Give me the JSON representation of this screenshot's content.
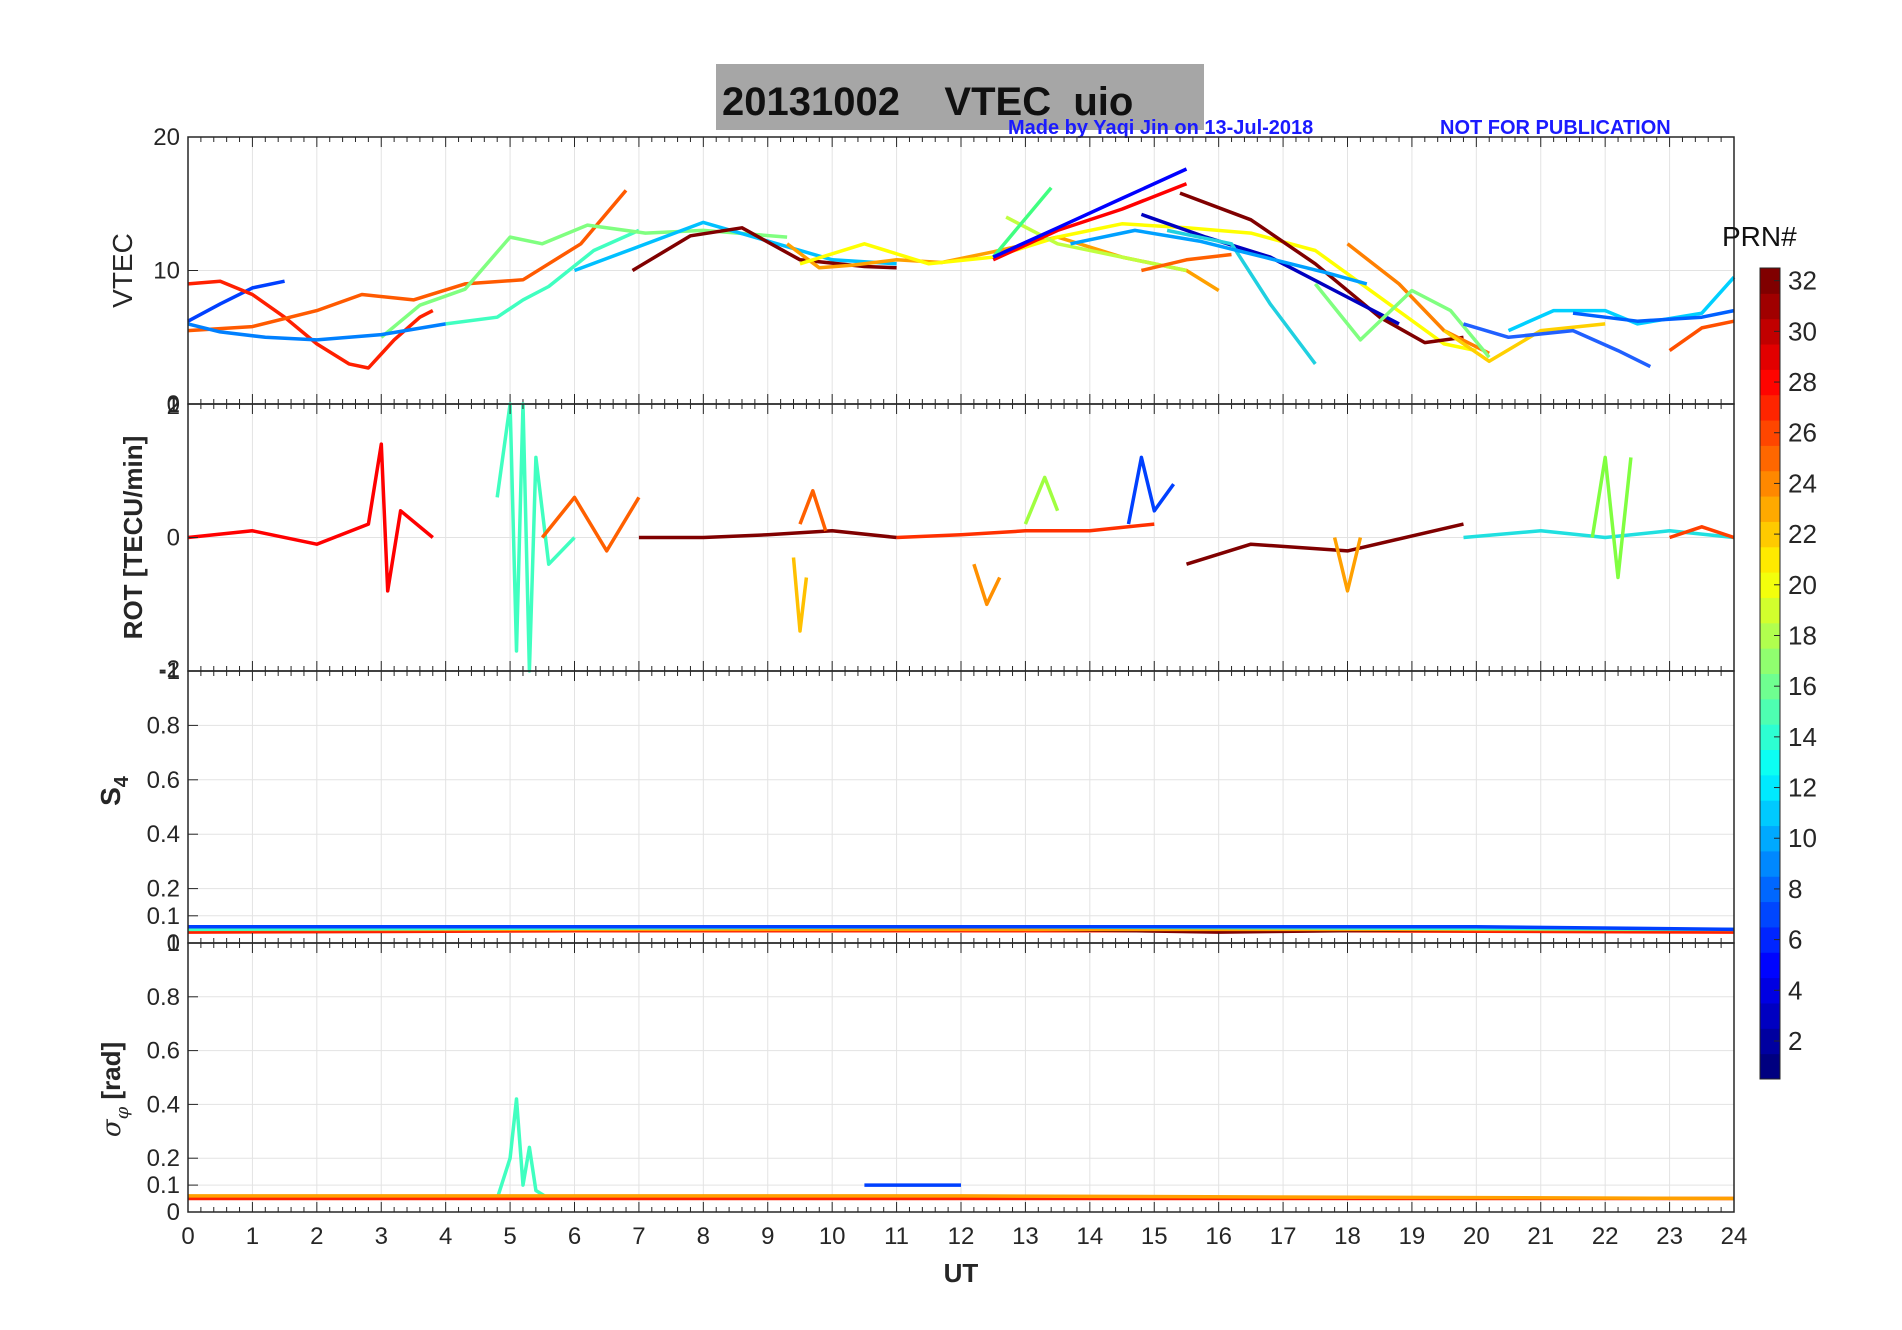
{
  "figure": {
    "title": "20131002    VTEC  uio",
    "credit": "Made by Yaqi Jin on 13-Jul-2018",
    "notice": "NOT FOR PUBLICATION",
    "colors": {
      "title_box": "#a6a6a6",
      "credit_text": "#1a1aff",
      "grid": "#e3e3e3",
      "axes": "#262626"
    }
  },
  "chart_data": [
    {
      "type": "line",
      "panel": "vtec",
      "ylabel": "VTEC",
      "ylim": [
        0,
        20
      ],
      "yticks": [
        "0",
        "10",
        "20"
      ],
      "yticks_values": [
        0,
        10,
        20
      ],
      "xlim": [
        0,
        24
      ],
      "grid": true,
      "series": [
        {
          "color": "#0040ff",
          "x": [
            0,
            0.5,
            1,
            1.5
          ],
          "y": [
            6.2,
            7.5,
            8.7,
            9.2
          ]
        },
        {
          "color": "#ff2000",
          "x": [
            0,
            0.5,
            1,
            1.5,
            2,
            2.5,
            2.8,
            3.2,
            3.6,
            3.8
          ],
          "y": [
            9,
            9.2,
            8.2,
            6.5,
            4.5,
            3,
            2.7,
            4.8,
            6.5,
            7
          ]
        },
        {
          "color": "#ff5a00",
          "x": [
            0,
            1,
            2,
            2.7,
            3.5,
            4.3,
            5.2,
            6.1,
            6.8
          ],
          "y": [
            5.5,
            5.8,
            7,
            8.2,
            7.8,
            9,
            9.3,
            12,
            16
          ]
        },
        {
          "color": "#40ffc0",
          "x": [
            4,
            4.8,
            5.2,
            5.6,
            6.3,
            7
          ],
          "y": [
            6,
            6.5,
            7.8,
            8.8,
            11.5,
            13
          ]
        },
        {
          "color": "#80ff80",
          "x": [
            3,
            3.6,
            4.3,
            5,
            5.5,
            6.2,
            7.1,
            8,
            9.3
          ],
          "y": [
            5,
            7.4,
            8.6,
            12.5,
            12,
            13.4,
            12.8,
            13,
            12.5
          ]
        },
        {
          "color": "#0080ff",
          "x": [
            0,
            0.5,
            1.2,
            2,
            3,
            4
          ],
          "y": [
            6,
            5.4,
            5,
            4.8,
            5.2,
            6
          ]
        },
        {
          "color": "#00c0ff",
          "x": [
            6,
            7,
            8,
            9,
            10,
            11
          ],
          "y": [
            10,
            11.8,
            13.6,
            12.2,
            10.8,
            10.5
          ]
        },
        {
          "color": "#800000",
          "x": [
            6.9,
            7.8,
            8.6,
            9.5,
            10.5,
            11
          ],
          "y": [
            10,
            12.6,
            13.2,
            10.8,
            10.3,
            10.2
          ]
        },
        {
          "color": "#ffa000",
          "x": [
            9.3,
            9.8,
            10.3,
            11,
            11.7,
            12.5,
            13.5,
            14.5,
            15.5,
            16
          ],
          "y": [
            12,
            10.2,
            10.4,
            10.8,
            10.6,
            11.4,
            12.5,
            11,
            10,
            8.5
          ]
        },
        {
          "color": "#ffff00",
          "x": [
            9.5,
            10.5,
            11.5,
            12.5,
            13.5,
            14.5,
            15.5,
            16.5,
            17.5,
            18.5,
            19.5,
            20
          ],
          "y": [
            10.5,
            12,
            10.5,
            11,
            12.5,
            13.5,
            13.2,
            12.8,
            11.5,
            8,
            4.5,
            4
          ]
        },
        {
          "color": "#c0ff40",
          "x": [
            12.7,
            13.5,
            14.5,
            15.5
          ],
          "y": [
            14,
            12,
            11,
            10
          ]
        },
        {
          "color": "#40ff80",
          "x": [
            12.5,
            13.4
          ],
          "y": [
            11,
            16.2
          ]
        },
        {
          "color": "#ff0000",
          "x": [
            12.5,
            13.5,
            14.5,
            15.5
          ],
          "y": [
            10.8,
            13,
            14.6,
            16.5
          ]
        },
        {
          "color": "#0000ff",
          "x": [
            12.5,
            13.5,
            14.5,
            15.5
          ],
          "y": [
            11,
            13.2,
            15.4,
            17.6
          ]
        },
        {
          "color": "#ff6000",
          "x": [
            14.8,
            15.5,
            16.2
          ],
          "y": [
            10,
            10.8,
            11.2
          ]
        },
        {
          "color": "#800000",
          "x": [
            15.4,
            16.5,
            17.5,
            18.5,
            19.2,
            19.8
          ],
          "y": [
            15.8,
            13.8,
            10.5,
            6.5,
            4.6,
            5
          ]
        },
        {
          "color": "#0000c0",
          "x": [
            14.8,
            15.8,
            16.8,
            17.8,
            18.8
          ],
          "y": [
            14.2,
            12.5,
            11,
            8.5,
            6
          ]
        },
        {
          "color": "#20d0e0",
          "x": [
            15.2,
            16.2,
            16.8,
            17.5
          ],
          "y": [
            13,
            12,
            7.5,
            3
          ]
        },
        {
          "color": "#00a0ff",
          "x": [
            13.7,
            14.7,
            15.7,
            16.7,
            17.7,
            18.3
          ],
          "y": [
            12,
            13,
            12.2,
            11,
            9.8,
            9
          ]
        },
        {
          "color": "#ff8000",
          "x": [
            18,
            18.8,
            19.5,
            20.2
          ],
          "y": [
            12,
            9,
            5.5,
            3.8
          ]
        },
        {
          "color": "#80ff80",
          "x": [
            17.5,
            18.2,
            19,
            19.6,
            20.2
          ],
          "y": [
            9,
            4.8,
            8.5,
            7,
            3.5
          ]
        },
        {
          "color": "#ffd000",
          "x": [
            19.5,
            20.2,
            21,
            22
          ],
          "y": [
            5.5,
            3.2,
            5.5,
            6
          ]
        },
        {
          "color": "#2060ff",
          "x": [
            19.8,
            20.5,
            21.5,
            22.2,
            22.7
          ],
          "y": [
            6,
            5,
            5.5,
            4,
            2.8
          ]
        },
        {
          "color": "#00d0ff",
          "x": [
            20.5,
            21.2,
            22,
            22.5,
            23.5,
            24
          ],
          "y": [
            5.5,
            7,
            7,
            6,
            6.8,
            9.5
          ]
        },
        {
          "color": "#0060ff",
          "x": [
            21.5,
            22.5,
            23.5,
            24
          ],
          "y": [
            6.8,
            6.2,
            6.5,
            7
          ]
        },
        {
          "color": "#ff5000",
          "x": [
            23,
            23.5,
            24
          ],
          "y": [
            4,
            5.7,
            6.2
          ]
        }
      ]
    },
    {
      "type": "line",
      "panel": "rot",
      "ylabel": "ROT [TECU/min]",
      "ylim": [
        -1,
        1
      ],
      "yticks": [
        "-1",
        "0",
        "1"
      ],
      "yticks_values": [
        -1,
        0,
        1
      ],
      "overlap_labels": {
        "top": "2",
        "bottom": "-2"
      },
      "xlim": [
        0,
        24
      ],
      "grid": true,
      "series": [
        {
          "color": "#ff0000",
          "x": [
            0,
            1,
            2,
            2.8,
            3,
            3.1,
            3.3,
            3.8
          ],
          "y": [
            0,
            0.05,
            -0.05,
            0.1,
            0.7,
            -0.4,
            0.2,
            0
          ]
        },
        {
          "color": "#40ffc0",
          "x": [
            4.8,
            5,
            5.1,
            5.2,
            5.3,
            5.4,
            5.6,
            6
          ],
          "y": [
            0.3,
            1,
            -0.85,
            1,
            -1,
            0.6,
            -0.2,
            0
          ]
        },
        {
          "color": "#ff6000",
          "x": [
            5.5,
            6,
            6.5,
            7
          ],
          "y": [
            0,
            0.3,
            -0.1,
            0.3
          ]
        },
        {
          "color": "#800000",
          "x": [
            7,
            8,
            9,
            10,
            11
          ],
          "y": [
            0,
            0,
            0.02,
            0.05,
            0
          ]
        },
        {
          "color": "#ffc000",
          "x": [
            9.4,
            9.5,
            9.6
          ],
          "y": [
            -0.15,
            -0.7,
            -0.3
          ]
        },
        {
          "color": "#ff6000",
          "x": [
            9.5,
            9.7,
            9.9
          ],
          "y": [
            0.1,
            0.35,
            0.05
          ]
        },
        {
          "color": "#ff3000",
          "x": [
            11,
            12,
            13,
            14,
            15
          ],
          "y": [
            0,
            0.02,
            0.05,
            0.05,
            0.1
          ]
        },
        {
          "color": "#a0ff40",
          "x": [
            13,
            13.3,
            13.5
          ],
          "y": [
            0.1,
            0.45,
            0.2
          ]
        },
        {
          "color": "#ff9000",
          "x": [
            12.2,
            12.4,
            12.6
          ],
          "y": [
            -0.2,
            -0.5,
            -0.3
          ]
        },
        {
          "color": "#0040ff",
          "x": [
            14.6,
            14.8,
            15,
            15.3
          ],
          "y": [
            0.1,
            0.6,
            0.2,
            0.4
          ]
        },
        {
          "color": "#800000",
          "x": [
            15.5,
            16.5,
            18,
            19.8
          ],
          "y": [
            -0.2,
            -0.05,
            -0.1,
            0.1
          ]
        },
        {
          "color": "#ffa000",
          "x": [
            17.8,
            18,
            18.2
          ],
          "y": [
            0,
            -0.4,
            0
          ]
        },
        {
          "color": "#20e0e0",
          "x": [
            19.8,
            21,
            22,
            23,
            24
          ],
          "y": [
            0,
            0.05,
            0,
            0.05,
            0
          ]
        },
        {
          "color": "#80ff40",
          "x": [
            21.8,
            22,
            22.2,
            22.4
          ],
          "y": [
            0,
            0.6,
            -0.3,
            0.6
          ]
        },
        {
          "color": "#ff4000",
          "x": [
            23,
            23.5,
            24
          ],
          "y": [
            0,
            0.08,
            0
          ]
        }
      ]
    },
    {
      "type": "line",
      "panel": "s4",
      "ylabel": "S4",
      "ylim": [
        0,
        1
      ],
      "yticks": [
        "0",
        "0.1",
        "0.2",
        "0.4",
        "0.6",
        "0.8",
        "1"
      ],
      "yticks_values": [
        0,
        0.1,
        0.2,
        0.4,
        0.6,
        0.8,
        1
      ],
      "xlim": [
        0,
        24
      ],
      "grid": true,
      "series": [
        {
          "color": "#ff2000",
          "x": [
            0,
            6,
            12,
            18,
            24
          ],
          "y": [
            0.04,
            0.045,
            0.045,
            0.045,
            0.04
          ]
        },
        {
          "color": "#800000",
          "x": [
            7,
            12,
            16,
            19.8
          ],
          "y": [
            0.05,
            0.055,
            0.04,
            0.05
          ]
        },
        {
          "color": "#ffa000",
          "x": [
            0,
            8,
            16,
            24
          ],
          "y": [
            0.05,
            0.05,
            0.05,
            0.05
          ]
        },
        {
          "color": "#40ffc0",
          "x": [
            0,
            12,
            24
          ],
          "y": [
            0.05,
            0.06,
            0.05
          ]
        },
        {
          "color": "#0040ff",
          "x": [
            0,
            10,
            20,
            24
          ],
          "y": [
            0.06,
            0.06,
            0.06,
            0.05
          ]
        }
      ]
    },
    {
      "type": "line",
      "panel": "sigma_phi",
      "ylabel": "σφ [rad]",
      "ylim": [
        0,
        1
      ],
      "yticks": [
        "0",
        "0.1",
        "0.2",
        "0.4",
        "0.6",
        "0.8",
        "1"
      ],
      "yticks_values": [
        0,
        0.1,
        0.2,
        0.4,
        0.6,
        0.8,
        1
      ],
      "xlabel": "UT",
      "xlim": [
        0,
        24
      ],
      "xticks": [
        "0",
        "1",
        "2",
        "3",
        "4",
        "5",
        "6",
        "7",
        "8",
        "9",
        "10",
        "11",
        "12",
        "13",
        "14",
        "15",
        "16",
        "17",
        "18",
        "19",
        "20",
        "21",
        "22",
        "23",
        "24"
      ],
      "grid": true,
      "series": [
        {
          "color": "#40ffc0",
          "x": [
            4.8,
            5,
            5.1,
            5.2,
            5.3,
            5.4,
            5.6
          ],
          "y": [
            0.05,
            0.2,
            0.42,
            0.1,
            0.24,
            0.08,
            0.05
          ]
        },
        {
          "color": "#ff2000",
          "x": [
            0,
            6,
            12,
            18,
            24
          ],
          "y": [
            0.05,
            0.05,
            0.05,
            0.05,
            0.05
          ]
        },
        {
          "color": "#0040ff",
          "x": [
            10.5,
            11,
            11.5,
            12
          ],
          "y": [
            0.1,
            0.1,
            0.1,
            0.1
          ]
        },
        {
          "color": "#ffa000",
          "x": [
            0,
            12,
            24
          ],
          "y": [
            0.06,
            0.06,
            0.05
          ]
        }
      ]
    }
  ],
  "colorbar": {
    "label": "PRN#",
    "range": [
      1,
      32
    ],
    "ticks": [
      "2",
      "4",
      "6",
      "8",
      "10",
      "12",
      "14",
      "16",
      "18",
      "20",
      "22",
      "24",
      "26",
      "28",
      "30",
      "32"
    ],
    "colormap": "jet"
  }
}
